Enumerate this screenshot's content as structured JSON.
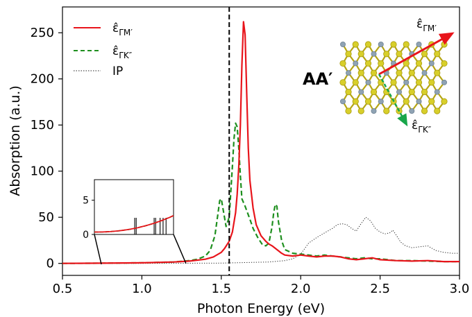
{
  "chart_data": {
    "type": "line",
    "xlabel": "Photon Energy (eV)",
    "ylabel": "Absorption (a.u.)",
    "xlim": [
      0.5,
      3.0
    ],
    "ylim": [
      -13,
      278
    ],
    "x_ticks": [
      "0.5",
      "1.0",
      "1.5",
      "2.0",
      "2.5",
      "3.0"
    ],
    "y_ticks": [
      "0",
      "50",
      "100",
      "150",
      "200",
      "250"
    ],
    "grid": false,
    "legend_position": "top-left",
    "vertical_marker": {
      "x": 1.55,
      "style": "dashed",
      "color": "#000000"
    },
    "series": [
      {
        "name": "ε̂ΓM′",
        "display_base": "ε̂",
        "display_sub": "ΓM′",
        "color": "#e8141b",
        "style": "solid",
        "x": [
          0.5,
          0.75,
          1.0,
          1.2,
          1.3,
          1.4,
          1.45,
          1.5,
          1.52,
          1.55,
          1.57,
          1.59,
          1.6,
          1.61,
          1.62,
          1.63,
          1.64,
          1.65,
          1.66,
          1.67,
          1.68,
          1.7,
          1.72,
          1.75,
          1.78,
          1.8,
          1.82,
          1.85,
          1.88,
          1.9,
          1.95,
          2.0,
          2.05,
          2.1,
          2.15,
          2.2,
          2.25,
          2.3,
          2.35,
          2.4,
          2.45,
          2.5,
          2.6,
          2.7,
          2.8,
          2.9,
          3.0
        ],
        "values": [
          0,
          0.2,
          0.6,
          1.5,
          2.5,
          4.5,
          7,
          12,
          16,
          24,
          34,
          55,
          75,
          105,
          150,
          215,
          262,
          248,
          185,
          125,
          90,
          60,
          42,
          30,
          24,
          21,
          19,
          15,
          11,
          9,
          8,
          9,
          8,
          7,
          8,
          8,
          7,
          5,
          4,
          5,
          6,
          4,
          3,
          2.5,
          3,
          2,
          2
        ]
      },
      {
        "name": "ε̂ΓK″",
        "display_base": "ε̂",
        "display_sub": "ΓK″",
        "color": "#1e8f1e",
        "style": "dashed",
        "x": [
          0.5,
          0.75,
          1.0,
          1.2,
          1.3,
          1.35,
          1.4,
          1.43,
          1.46,
          1.48,
          1.49,
          1.5,
          1.51,
          1.53,
          1.55,
          1.57,
          1.58,
          1.59,
          1.6,
          1.61,
          1.62,
          1.63,
          1.65,
          1.68,
          1.7,
          1.73,
          1.76,
          1.78,
          1.8,
          1.82,
          1.83,
          1.84,
          1.85,
          1.86,
          1.88,
          1.9,
          1.95,
          2.0,
          2.05,
          2.1,
          2.15,
          2.2,
          2.25,
          2.3,
          2.35,
          2.4,
          2.45,
          2.5,
          2.6,
          2.7,
          2.8,
          2.9,
          3.0
        ],
        "values": [
          0,
          0.2,
          0.6,
          1.5,
          3,
          4.5,
          8,
          14,
          30,
          55,
          68,
          70,
          60,
          40,
          50,
          105,
          135,
          152,
          148,
          125,
          95,
          70,
          62,
          48,
          38,
          28,
          20,
          19,
          22,
          40,
          55,
          64,
          62,
          45,
          25,
          15,
          11,
          10,
          9,
          8,
          9,
          8,
          7,
          6,
          5,
          6,
          5,
          5,
          3,
          3,
          2.5,
          2,
          2
        ]
      },
      {
        "name": "IP",
        "display_base": "IP",
        "display_sub": "",
        "color": "#222222",
        "style": "dotted",
        "x": [
          0.5,
          1.0,
          1.5,
          1.8,
          1.9,
          1.95,
          2.0,
          2.05,
          2.1,
          2.15,
          2.2,
          2.23,
          2.26,
          2.29,
          2.32,
          2.35,
          2.38,
          2.41,
          2.44,
          2.47,
          2.5,
          2.53,
          2.56,
          2.58,
          2.6,
          2.63,
          2.66,
          2.7,
          2.75,
          2.8,
          2.85,
          2.9,
          2.95,
          3.0
        ],
        "values": [
          0,
          0,
          0.3,
          1.5,
          3,
          5,
          10,
          22,
          28,
          33,
          38,
          42,
          43,
          42,
          38,
          35,
          43,
          50,
          46,
          38,
          34,
          32,
          33,
          36,
          31,
          23,
          19,
          17,
          18,
          19,
          14,
          12,
          11,
          11
        ]
      }
    ],
    "inset": {
      "y_ticks": [
        "0",
        "5"
      ],
      "ylim": [
        0,
        8
      ],
      "xlim": [
        0.75,
        1.28
      ],
      "transition_lines_x": [
        1.02,
        1.03,
        1.15,
        1.16,
        1.19,
        1.21,
        1.23
      ]
    },
    "structure_label": "AA′",
    "arrow_labels": {
      "gm_base": "ε̂",
      "gm_sub": "ΓM′",
      "gk_base": "ε̂",
      "gk_sub": "ΓK″"
    }
  }
}
